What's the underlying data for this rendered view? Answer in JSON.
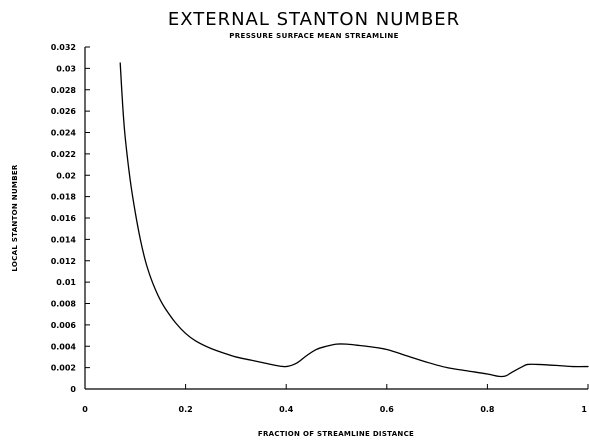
{
  "chart_data": {
    "type": "line",
    "title": "EXTERNAL STANTON NUMBER",
    "subtitle": "PRESSURE SURFACE MEAN STREAMLINE",
    "xlabel": "FRACTION OF STREAMLINE DISTANCE",
    "ylabel": "LOCAL STANTON NUMBER",
    "xlim": [
      0,
      1
    ],
    "ylim": [
      0,
      0.032
    ],
    "x_ticks": [
      {
        "value": 0,
        "label": "0"
      },
      {
        "value": 0.2,
        "label": "0.2"
      },
      {
        "value": 0.4,
        "label": "0.4"
      },
      {
        "value": 0.6,
        "label": "0.6"
      },
      {
        "value": 0.8,
        "label": "0.8"
      },
      {
        "value": 1,
        "label": "1"
      }
    ],
    "y_ticks": [
      {
        "value": 0,
        "label": "0"
      },
      {
        "value": 0.002,
        "label": "0.002"
      },
      {
        "value": 0.004,
        "label": "0.004"
      },
      {
        "value": 0.006,
        "label": "0.006"
      },
      {
        "value": 0.008,
        "label": "0.008"
      },
      {
        "value": 0.01,
        "label": "0.01"
      },
      {
        "value": 0.012,
        "label": "0.012"
      },
      {
        "value": 0.014,
        "label": "0.014"
      },
      {
        "value": 0.016,
        "label": "0.016"
      },
      {
        "value": 0.018,
        "label": "0.018"
      },
      {
        "value": 0.02,
        "label": "0.02"
      },
      {
        "value": 0.022,
        "label": "0.022"
      },
      {
        "value": 0.024,
        "label": "0.024"
      },
      {
        "value": 0.026,
        "label": "0.026"
      },
      {
        "value": 0.028,
        "label": "0.028"
      },
      {
        "value": 0.03,
        "label": "0.03"
      },
      {
        "value": 0.032,
        "label": "0.032"
      }
    ],
    "grid": false,
    "legend": "none",
    "line_color": "#000000",
    "series": [
      {
        "x": [
          0.07,
          0.075,
          0.08,
          0.09,
          0.1,
          0.11,
          0.12,
          0.13,
          0.14,
          0.15,
          0.16,
          0.18,
          0.2,
          0.22,
          0.25,
          0.28,
          0.3,
          0.33,
          0.36,
          0.38,
          0.4,
          0.42,
          0.44,
          0.46,
          0.48,
          0.5,
          0.52,
          0.54,
          0.56,
          0.6,
          0.64,
          0.68,
          0.72,
          0.76,
          0.8,
          0.82,
          0.835,
          0.85,
          0.87,
          0.88,
          0.9,
          0.94,
          0.97,
          1.0
        ],
        "values": [
          0.0305,
          0.0265,
          0.0235,
          0.0195,
          0.0165,
          0.014,
          0.012,
          0.0105,
          0.0093,
          0.0083,
          0.0075,
          0.0062,
          0.0052,
          0.0045,
          0.0038,
          0.0033,
          0.003,
          0.0027,
          0.0024,
          0.0022,
          0.0021,
          0.0024,
          0.0031,
          0.0037,
          0.004,
          0.0042,
          0.0042,
          0.0041,
          0.004,
          0.0037,
          0.0031,
          0.0025,
          0.002,
          0.0017,
          0.0014,
          0.0012,
          0.0012,
          0.0016,
          0.0021,
          0.0023,
          0.0023,
          0.0022,
          0.0021,
          0.0021
        ]
      }
    ]
  }
}
